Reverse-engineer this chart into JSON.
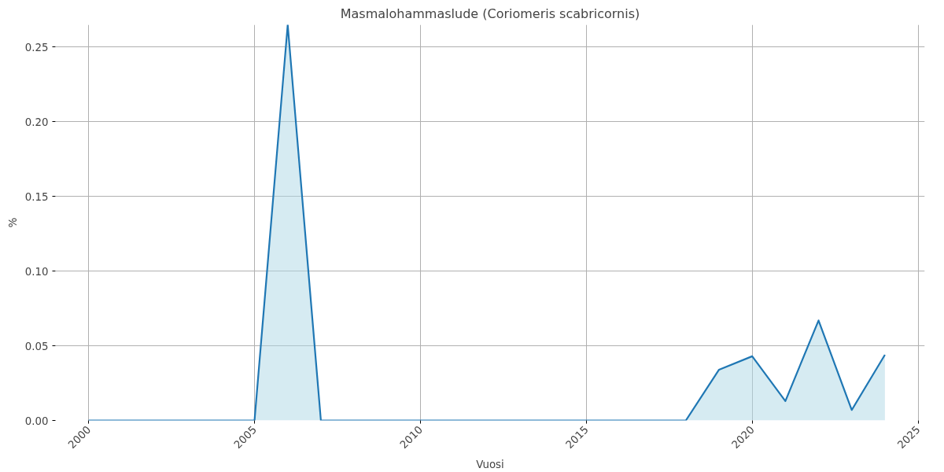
{
  "chart_data": {
    "type": "area",
    "title": "Masmalohammaslude (Coriomeris scabricornis)",
    "xlabel": "Vuosi",
    "ylabel": "%",
    "x": [
      2000,
      2001,
      2002,
      2003,
      2004,
      2005,
      2006,
      2007,
      2008,
      2009,
      2010,
      2011,
      2012,
      2013,
      2014,
      2015,
      2016,
      2017,
      2018,
      2019,
      2020,
      2021,
      2022,
      2023,
      2024
    ],
    "series": [
      {
        "color": "#1f77b4",
        "values": [
          0,
          0,
          0,
          0,
          0,
          0,
          0.265,
          0,
          0,
          0,
          0,
          0,
          0,
          0,
          0,
          0,
          0,
          0,
          0,
          0.034,
          0.043,
          0.013,
          0.067,
          0.007,
          0.044
        ]
      }
    ],
    "xlim": [
      1999,
      2025.2
    ],
    "ylim": [
      0,
      0.265
    ],
    "xticks": [
      2000,
      2005,
      2010,
      2015,
      2020,
      2025
    ],
    "yticks": [
      {
        "value": 0,
        "label": "0.00"
      },
      {
        "value": 0.05,
        "label": "0.05"
      },
      {
        "value": 0.1,
        "label": "0.10"
      },
      {
        "value": 0.15,
        "label": "0.15"
      },
      {
        "value": 0.2,
        "label": "0.20"
      },
      {
        "value": 0.25,
        "label": "0.25"
      }
    ],
    "grid": true
  }
}
